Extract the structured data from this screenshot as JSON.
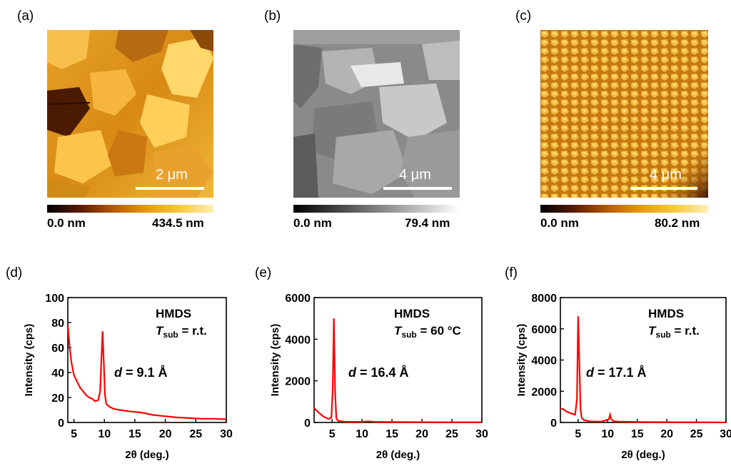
{
  "panels_top": [
    {
      "label": "(a)",
      "scale_text": "2 μm",
      "cbar_min": "0.0 nm",
      "cbar_max": "434.5 nm"
    },
    {
      "label": "(b)",
      "scale_text": "4 μm",
      "cbar_min": "0.0 nm",
      "cbar_max": "79.4 nm"
    },
    {
      "label": "(c)",
      "scale_text": "4 μm",
      "cbar_min": "0.0 nm",
      "cbar_max": "80.2 nm"
    }
  ],
  "chart_data": [
    {
      "type": "line",
      "panel_label": "(d)",
      "ylabel": "Intensity (cps)",
      "xlabel": "2θ (deg.)",
      "xlim": [
        4,
        30
      ],
      "ylim": [
        0,
        100
      ],
      "xticks": [
        5,
        10,
        15,
        20,
        25,
        30
      ],
      "yticks": [
        0,
        20,
        40,
        60,
        80,
        100
      ],
      "annotation_main": "HMDS",
      "annotation_tsub": "T",
      "annotation_tsub_sub": "sub",
      "annotation_tsub_val": " = r.t.",
      "annotation_d_var": "d",
      "annotation_d_val": " = 9.1 Å",
      "color": "#ff0000",
      "series": [
        {
          "x": [
            4.0,
            4.3,
            4.6,
            5.0,
            5.5,
            6.0,
            6.5,
            7.0,
            7.5,
            8.0,
            8.5,
            9.0,
            9.3,
            9.5,
            9.7,
            9.9,
            10.1,
            10.3,
            10.7,
            11.5,
            12.5,
            14,
            16,
            18,
            20,
            22,
            24,
            26,
            28,
            30
          ],
          "y": [
            78,
            60,
            48,
            38,
            33,
            28,
            25,
            22,
            20,
            19,
            17,
            18,
            25,
            50,
            73,
            48,
            22,
            15,
            13,
            11,
            10,
            9,
            8,
            6,
            5,
            4,
            3.5,
            3,
            3,
            2.5
          ]
        }
      ]
    },
    {
      "type": "line",
      "panel_label": "(e)",
      "ylabel": "Intensity (cps)",
      "xlabel": "2θ (deg.)",
      "xlim": [
        2,
        30
      ],
      "ylim": [
        0,
        6000
      ],
      "xticks": [
        5,
        10,
        15,
        20,
        25,
        30
      ],
      "yticks": [
        0,
        2000,
        4000,
        6000
      ],
      "annotation_main": "HMDS",
      "annotation_tsub": "T",
      "annotation_tsub_sub": "sub",
      "annotation_tsub_val": " = 60 °C",
      "annotation_d_var": "d",
      "annotation_d_val": " = 16.4 Å",
      "color": "#ff0000",
      "series": [
        {
          "x": [
            2,
            2.5,
            3,
            3.5,
            4,
            4.5,
            4.9,
            5.1,
            5.3,
            5.5,
            5.7,
            6.0,
            7,
            8,
            10,
            11,
            12,
            15,
            20,
            25,
            30
          ],
          "y": [
            700,
            550,
            420,
            300,
            220,
            170,
            250,
            1500,
            5000,
            1500,
            200,
            80,
            40,
            30,
            30,
            60,
            30,
            20,
            15,
            10,
            10
          ]
        }
      ]
    },
    {
      "type": "line",
      "panel_label": "(f)",
      "ylabel": "Intensity (cps)",
      "xlabel": "2θ (deg.)",
      "xlim": [
        2,
        30
      ],
      "ylim": [
        0,
        8000
      ],
      "xticks": [
        5,
        10,
        15,
        20,
        25,
        30
      ],
      "yticks": [
        0,
        2000,
        4000,
        6000,
        8000
      ],
      "annotation_main": "HMDS",
      "annotation_tsub": "T",
      "annotation_tsub_sub": "sub",
      "annotation_tsub_val": " = r.t.",
      "annotation_d_var": "d",
      "annotation_d_val": " = 17.1 Å",
      "color": "#ff0000",
      "series": [
        {
          "x": [
            2,
            2.5,
            3,
            3.5,
            4,
            4.5,
            4.8,
            5.0,
            5.2,
            5.4,
            5.6,
            6.0,
            7,
            8,
            9,
            10.2,
            10.4,
            10.6,
            11,
            12,
            15,
            20,
            25,
            30
          ],
          "y": [
            900,
            850,
            700,
            620,
            560,
            500,
            1500,
            6800,
            4000,
            900,
            300,
            150,
            80,
            60,
            60,
            200,
            500,
            200,
            80,
            50,
            30,
            20,
            15,
            10
          ]
        }
      ]
    }
  ]
}
